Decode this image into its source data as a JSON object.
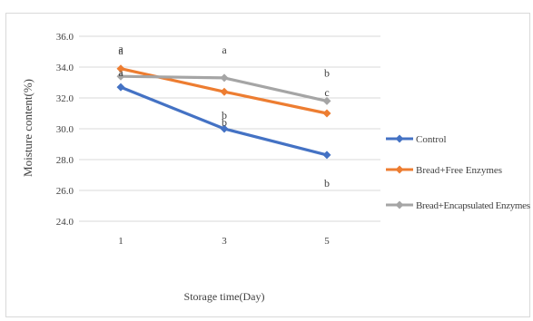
{
  "chart_data": {
    "type": "line",
    "x": [
      "1",
      "3",
      "5"
    ],
    "ylabel": "Moisture content(%)",
    "xlabel": "Storage time(Day)",
    "ylim": [
      24.0,
      36.0
    ],
    "yticks": [
      "24.0",
      "26.0",
      "28.0",
      "30.0",
      "32.0",
      "34.0",
      "36.0"
    ],
    "grid": "horizontal",
    "legend": "right",
    "series": [
      {
        "name": "Control",
        "color": "#4472c4",
        "values": [
          32.7,
          30.0,
          28.3
        ],
        "letters": [
          "a",
          "b",
          "b"
        ]
      },
      {
        "name": "Bread+Free Enzymes",
        "color": "#ed7d31",
        "values": [
          33.9,
          32.4,
          31.0
        ],
        "letters": [
          "a",
          "b",
          "c"
        ]
      },
      {
        "name": "Bread+Encapsulated Enzymes",
        "color": "#a5a5a5",
        "values": [
          33.4,
          33.3,
          31.8
        ],
        "letters": [
          "a",
          "a",
          "b"
        ]
      }
    ]
  }
}
